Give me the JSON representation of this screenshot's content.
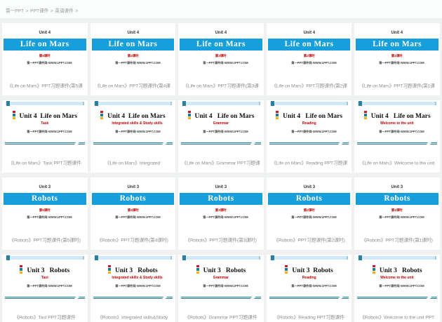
{
  "breadcrumb": {
    "items": [
      {
        "label": "第一PPT"
      },
      {
        "label": "PPT课件"
      },
      {
        "label": "英语课件"
      }
    ],
    "separator": ">"
  },
  "colors": {
    "banner_blue": "#169fdb",
    "subtitle_red": "#c00000",
    "divider_teal": "#2c7f9c",
    "topbar_light_blue": "#cfe9f7",
    "topbar_dark_square": "#2e7f9e",
    "icon_red": "#cf1627",
    "icon_teal": "#1a7d96",
    "icon_yellow": "#f0b000",
    "caption_gray": "#8f8f8f"
  },
  "cards": [
    {
      "type": "exercise",
      "unit": "Unit 4",
      "title": "Life on Mars",
      "lesson": "第5课时",
      "site": "第一PPT课件网-WWW.1PPT.COM",
      "caption": "《Life on Mars》PPT习题课件(第5课"
    },
    {
      "type": "exercise",
      "unit": "Unit 4",
      "title": "Life on Mars",
      "lesson": "第4课时",
      "site": "第一PPT课件网-WWW.1PPT.COM",
      "caption": "《Life on Mars》PPT习题课件(第4课"
    },
    {
      "type": "exercise",
      "unit": "Unit 4",
      "title": "Life on Mars",
      "lesson": "第3课时",
      "site": "第一PPT课件网-WWW.1PPT.COM",
      "caption": "《Life on Mars》PPT习题课件(第3课"
    },
    {
      "type": "exercise",
      "unit": "Unit 4",
      "title": "Life on Mars",
      "lesson": "第2课时",
      "site": "第一PPT课件网-WWW.1PPT.COM",
      "caption": "《Life on Mars》PPT习题课件(第2课"
    },
    {
      "type": "exercise",
      "unit": "Unit 4",
      "title": "Life on Mars",
      "lesson": "第1课时",
      "site": "第一PPT课件网-WWW.1PPT.COM",
      "caption": "《Life on Mars》PPT习题课件(第1课"
    },
    {
      "type": "lesson",
      "title": "Unit 4  Life on Mars",
      "subtitle": "Task",
      "site": "第一PPT课件网-WWW.1PPT.COM",
      "caption": "《Life on Mars》Task PPT习题课件"
    },
    {
      "type": "lesson",
      "title": "Unit 4  Life on Mars",
      "subtitle": "Integrated skills & Study skills",
      "site": "第一PPT课件网-WWW.1PPT.COM",
      "caption": "《Life on Mars》Integrated"
    },
    {
      "type": "lesson",
      "title": "Unit 4   Life on Mars",
      "subtitle": "Grammar",
      "site": "第一PPT课件网-WWW.1PPT.COM",
      "caption": "《Life on Mars》Grammar PPT习题课"
    },
    {
      "type": "lesson",
      "title": "Unit 4   Life on Mars",
      "subtitle": "Reading",
      "site": "第一PPT课件网-WWW.1PPT.COM",
      "caption": "《Life on Mars》Reading PPT习题课"
    },
    {
      "type": "lesson",
      "title": "Unit 4   Life on Mars",
      "subtitle": "Welcome to the unit",
      "site": "第一PPT课件网-WWW.1PPT.COM",
      "caption": "《Life on Mars》Welcome to the unit"
    },
    {
      "type": "exercise",
      "unit": "Unit 3",
      "title": "Robots",
      "lesson": "第5课时",
      "site": "第一PPT课件网-WWW.1PPT.COM",
      "caption": "《Robots》PPT习题课件(第5课时)"
    },
    {
      "type": "exercise",
      "unit": "Unit 3",
      "title": "Robots",
      "lesson": "第4课时",
      "site": "第一PPT课件网-WWW.1PPT.COM",
      "caption": "《Robots》PPT习题课件(第4课时)"
    },
    {
      "type": "exercise",
      "unit": "Unit 3",
      "title": "Robots",
      "lesson": "第3课时",
      "site": "第一PPT课件网-WWW.1PPT.COM",
      "caption": "《Robots》PPT习题课件(第3课时)"
    },
    {
      "type": "exercise",
      "unit": "Unit 3",
      "title": "Robots",
      "lesson": "第2课时",
      "site": "第一PPT课件网-WWW.1PPT.COM",
      "caption": "《Robots》PPT习题课件(第2课时)"
    },
    {
      "type": "exercise",
      "unit": "Unit 3",
      "title": "Robots",
      "lesson": "第1课时",
      "site": "第一PPT课件网-WWW.1PPT.COM",
      "caption": "《Robots》PPT习题课件(第1课时)"
    },
    {
      "type": "lesson",
      "title": "Unit 3   Robots",
      "subtitle": "Tast",
      "site": "第一PPT课件网-WWW.1PPT.COM",
      "caption": "《Robots》Tast PPT习题课件"
    },
    {
      "type": "lesson",
      "title": "Unit 3   Robots",
      "subtitle": "Integrated skills & Study skills",
      "site": "第一PPT课件网-WWW.1PPT.COM",
      "caption": "《Robots》Integrated skills&Study"
    },
    {
      "type": "lesson",
      "title": "Unit 3   Robots",
      "subtitle": "Grammar",
      "site": "第一PPT课件网-WWW.1PPT.COM",
      "caption": "《Robots》Grammar PPT习题课件"
    },
    {
      "type": "lesson",
      "title": "Unit 3  Robots",
      "subtitle": "Reading",
      "site": "第一PPT课件网-WWW.1PPT.COM",
      "caption": "《Robots》Reading PPT习题课件"
    },
    {
      "type": "lesson",
      "title": "Unit 3   Robots",
      "subtitle": "Welcome to the unit",
      "site": "第一PPT课件网-WWW.1PPT.COM",
      "caption": "《Robots》Welcome to the unit PPT"
    }
  ]
}
